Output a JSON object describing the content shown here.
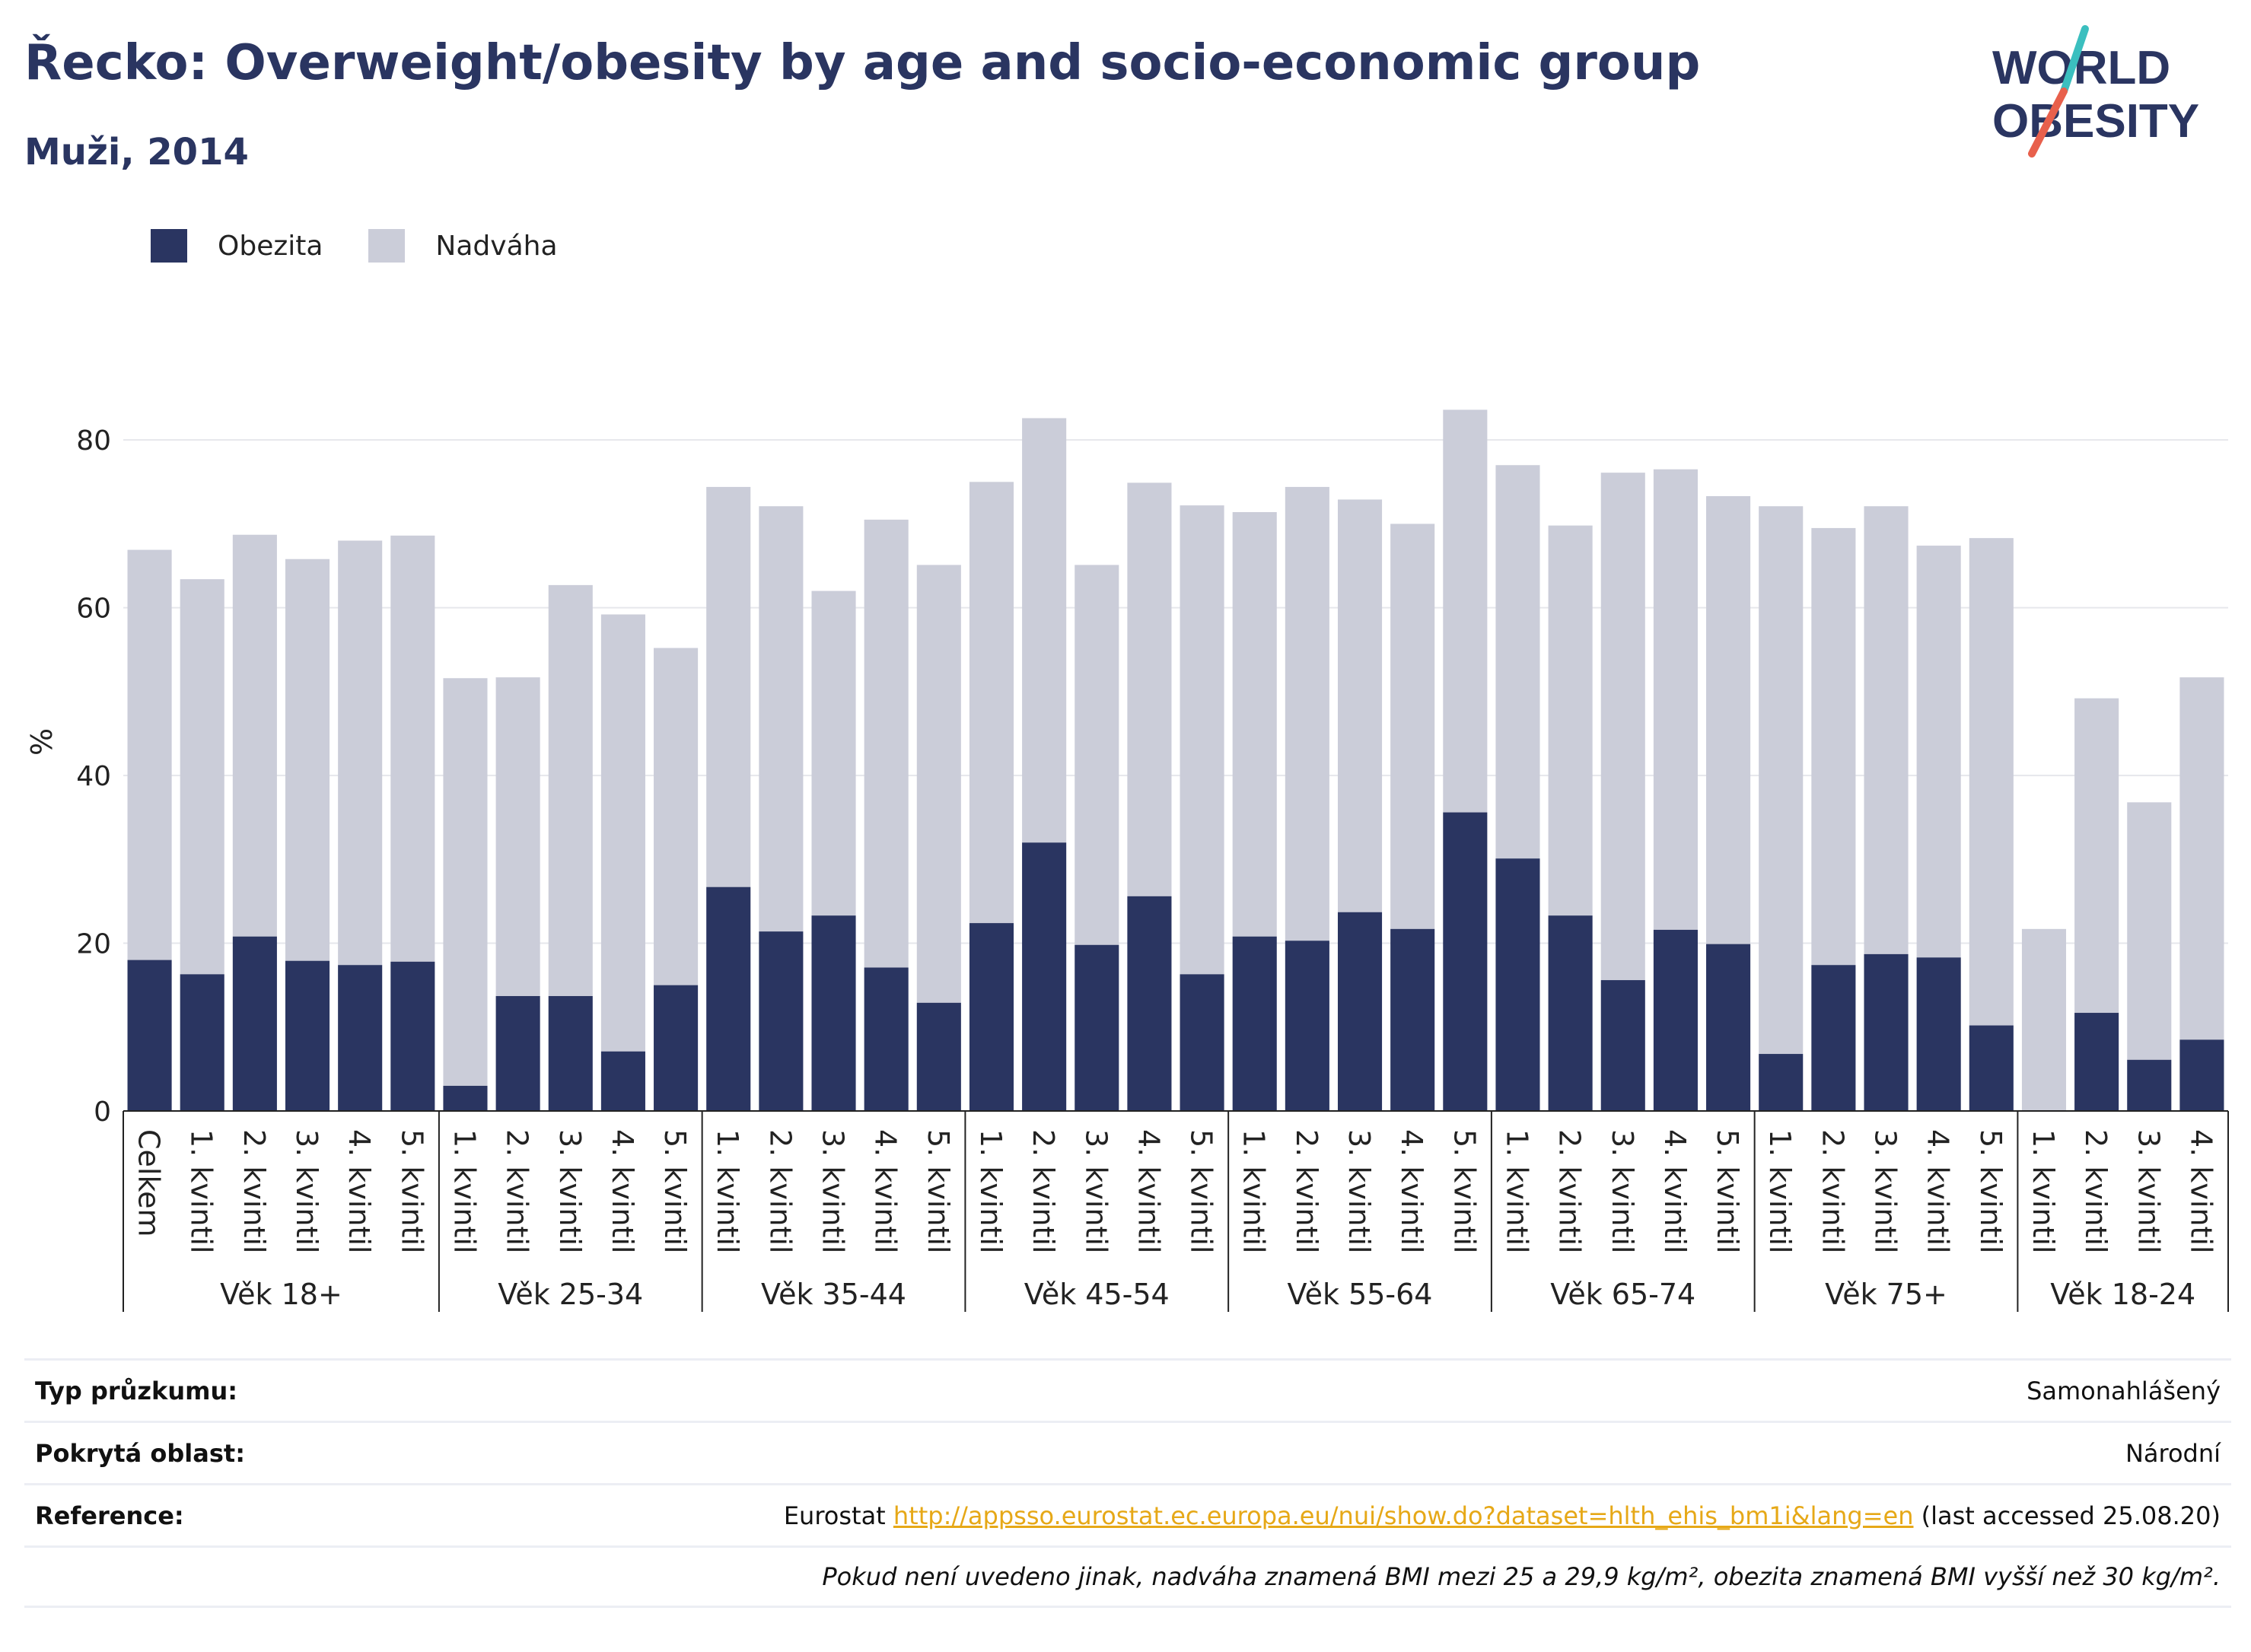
{
  "title": "Řecko: Overweight/obesity by age and socio-economic group",
  "subtitle": "Muži, 2014",
  "logo": {
    "line1": "WORLD",
    "line2": "OBESITY",
    "colors": {
      "text": "#2a3561",
      "slash_top": "#3bbfbf",
      "slash_bottom": "#e8604c"
    }
  },
  "legend": [
    {
      "name": "Obezita",
      "color": "#2a3561"
    },
    {
      "name": "Nadváha",
      "color": "#cbcdd9"
    }
  ],
  "chart_data": {
    "type": "bar",
    "stacked": true,
    "ylabel": "%",
    "xlabel": "",
    "ylim": [
      0,
      88
    ],
    "yticks": [
      0,
      20,
      40,
      60,
      80
    ],
    "grid": true,
    "legend_position": "top-left",
    "groups": [
      {
        "label": "Věk 18+",
        "categories": [
          "Celkem",
          "1. kvintil",
          "2. kvintil",
          "3. kvintil",
          "4. kvintil",
          "5. kvintil"
        ]
      },
      {
        "label": "Věk 25-34",
        "categories": [
          "1. kvintil",
          "2. kvintil",
          "3. kvintil",
          "4. kvintil",
          "5. kvintil"
        ]
      },
      {
        "label": "Věk 35-44",
        "categories": [
          "1. kvintil",
          "2. kvintil",
          "3. kvintil",
          "4. kvintil",
          "5. kvintil"
        ]
      },
      {
        "label": "Věk 45-54",
        "categories": [
          "1. kvintil",
          "2. kvintil",
          "3. kvintil",
          "4. kvintil",
          "5. kvintil"
        ]
      },
      {
        "label": "Věk 55-64",
        "categories": [
          "1. kvintil",
          "2. kvintil",
          "3. kvintil",
          "4. kvintil",
          "5. kvintil"
        ]
      },
      {
        "label": "Věk 65-74",
        "categories": [
          "1. kvintil",
          "2. kvintil",
          "3. kvintil",
          "4. kvintil",
          "5. kvintil"
        ]
      },
      {
        "label": "Věk 75+",
        "categories": [
          "1. kvintil",
          "2. kvintil",
          "3. kvintil",
          "4. kvintil",
          "5. kvintil"
        ]
      },
      {
        "label": "Věk 18-24",
        "categories": [
          "1. kvintil",
          "2. kvintil",
          "3. kvintil",
          "4. kvintil"
        ]
      }
    ],
    "series": [
      {
        "name": "Obezita",
        "color": "#2a3561",
        "values": [
          18.0,
          16.3,
          20.8,
          17.9,
          17.4,
          17.8,
          3.0,
          13.7,
          13.7,
          7.1,
          15.0,
          26.7,
          21.4,
          23.3,
          17.1,
          12.9,
          22.4,
          32.0,
          19.8,
          25.6,
          16.3,
          20.8,
          20.3,
          23.7,
          21.7,
          35.6,
          30.1,
          23.3,
          15.6,
          21.6,
          19.9,
          6.8,
          17.4,
          18.7,
          18.3,
          10.2,
          0.0,
          11.7,
          6.1,
          8.5
        ]
      },
      {
        "name": "Nadváha",
        "color": "#cbcdd9",
        "values": [
          48.9,
          47.1,
          47.9,
          47.9,
          50.6,
          50.8,
          48.6,
          38.0,
          49.0,
          52.1,
          40.2,
          47.7,
          50.7,
          38.7,
          53.4,
          52.2,
          52.6,
          50.6,
          45.3,
          49.3,
          55.9,
          50.6,
          54.1,
          49.2,
          48.3,
          48.0,
          46.9,
          46.5,
          60.5,
          54.9,
          53.4,
          65.3,
          52.1,
          53.4,
          49.1,
          58.1,
          21.7,
          37.5,
          30.7,
          43.2
        ]
      }
    ]
  },
  "info": [
    {
      "label": "Typ průzkumu:",
      "value": "Samonahlášený"
    },
    {
      "label": "Pokrytá oblast:",
      "value": "Národní"
    },
    {
      "label": "Reference:",
      "prefix": "Eurostat",
      "link": "http://appsso.eurostat.ec.europa.eu/nui/show.do?dataset=hlth_ehis_bm1i&lang=en",
      "suffix": "(last accessed 25.08.20)"
    },
    {
      "note": "Pokud není uvedeno jinak, nadváha znamená BMI mezi 25 a 29,9 kg/m², obezita znamená BMI vyšší než 30 kg/m²."
    }
  ]
}
